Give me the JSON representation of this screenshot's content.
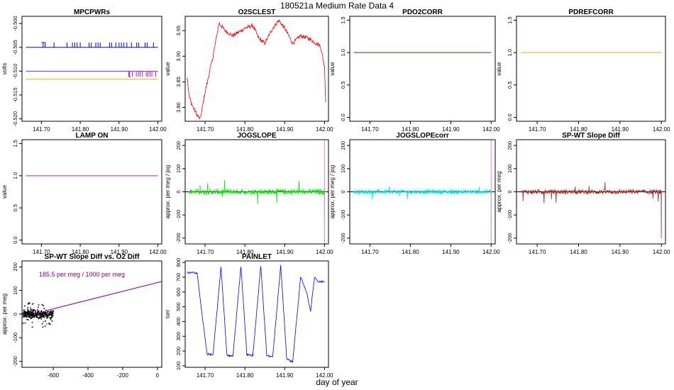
{
  "page": {
    "title": "180521a   Medium Rate Data 4",
    "footer": "day of year"
  },
  "chart_data": [
    {
      "type": "line",
      "title": "MPCPWRs",
      "ylabel": "volts",
      "xlim": [
        141.65,
        142.01
      ],
      "ylim": [
        -0.5205,
        -0.4985
      ],
      "xticks": [
        "141.70",
        "141.80",
        "141.90",
        "142.00"
      ],
      "yticks": [
        "-0.520",
        "-0.515",
        "-0.510",
        "-0.505",
        "-0.500"
      ],
      "series": [
        {
          "color": "#0000ff",
          "style": "step",
          "base": -0.505,
          "high": -0.504,
          "x": [
            141.66,
            141.7,
            141.71,
            141.76,
            141.78,
            141.8,
            141.87,
            141.9,
            141.92,
            141.94,
            142.0
          ]
        },
        {
          "color": "#a020f0",
          "style": "step",
          "base": -0.51,
          "high": -0.5112,
          "x": [
            141.66,
            141.925,
            141.93,
            141.94,
            141.95,
            141.96,
            141.97,
            141.98,
            141.99,
            142.0
          ]
        },
        {
          "color": "#ffa500",
          "style": "flat",
          "y": -0.5117,
          "x": [
            141.66,
            142.0
          ]
        }
      ]
    },
    {
      "type": "line",
      "title": "O2SCLEST",
      "ylabel": "value",
      "xlim": [
        141.65,
        142.01
      ],
      "ylim": [
        3.773,
        3.978
      ],
      "xticks": [
        "141.70",
        "141.80",
        "141.90",
        "142.00"
      ],
      "yticks": [
        "3.80",
        "3.85",
        "3.90",
        "3.95"
      ],
      "series": [
        {
          "color": "#ff0000",
          "noise": 0.004,
          "x": [
            141.655,
            141.66,
            141.67,
            141.68,
            141.688,
            141.7,
            141.72,
            141.735,
            141.75,
            141.77,
            141.8,
            141.82,
            141.835,
            141.85,
            141.87,
            141.885,
            141.9,
            141.92,
            141.94,
            141.96,
            141.98,
            141.99,
            142.0,
            142.003
          ],
          "y": [
            3.86,
            3.82,
            3.8,
            3.785,
            3.777,
            3.83,
            3.9,
            3.965,
            3.95,
            3.94,
            3.955,
            3.96,
            3.935,
            3.925,
            3.955,
            3.97,
            3.955,
            3.925,
            3.94,
            3.935,
            3.925,
            3.92,
            3.88,
            3.81
          ]
        }
      ]
    },
    {
      "type": "line",
      "title": "PDO2CORR",
      "ylabel": "value",
      "xlim": [
        141.65,
        142.01
      ],
      "ylim": [
        -0.06,
        1.56
      ],
      "xticks": [
        "141.70",
        "141.80",
        "141.90",
        "142.00"
      ],
      "yticks": [
        "0.0",
        "0.5",
        "1.0",
        "1.5"
      ],
      "series": [
        {
          "color": "#006400",
          "style": "flat",
          "y": 1.0,
          "x": [
            141.66,
            142.0
          ]
        }
      ]
    },
    {
      "type": "line",
      "title": "PDREFCORR",
      "ylabel": "value",
      "xlim": [
        141.65,
        142.01
      ],
      "ylim": [
        -0.06,
        1.56
      ],
      "xticks": [
        "141.70",
        "141.80",
        "141.90",
        "142.00"
      ],
      "yticks": [
        "0.0",
        "0.5",
        "1.0",
        "1.5"
      ],
      "series": [
        {
          "color": "#ffa500",
          "style": "flat",
          "y": 1.0,
          "x": [
            141.66,
            142.0
          ]
        }
      ]
    },
    {
      "type": "line",
      "title": "LAMP ON",
      "ylabel": "value",
      "xlim": [
        141.65,
        142.01
      ],
      "ylim": [
        -0.06,
        1.56
      ],
      "xticks": [
        "141.70",
        "141.80",
        "141.90",
        "142.00"
      ],
      "yticks": [
        "0.0",
        "0.5",
        "1.0",
        "1.5"
      ],
      "series": [
        {
          "color": "#a020f0",
          "style": "flat",
          "y": 1.0,
          "x": [
            141.66,
            142.0
          ]
        }
      ]
    },
    {
      "type": "line",
      "title": "JOGSLOPE",
      "ylabel": "approx. per meg / jog",
      "xlim": [
        141.65,
        142.01
      ],
      "ylim": [
        -225,
        225
      ],
      "xticks": [
        "141.70",
        "141.80",
        "141.90",
        "142.00"
      ],
      "yticks": [
        "-200",
        "-100",
        "0",
        "100",
        "200"
      ],
      "hline": {
        "y": 0,
        "color": "#000000"
      },
      "vline": {
        "x": 142.0,
        "color": "#ee82ee"
      },
      "series": [
        {
          "color": "#00ee00",
          "style": "noise",
          "noise": 12,
          "spike": 55,
          "x": [
            141.66,
            142.0
          ],
          "dropto": -215
        }
      ]
    },
    {
      "type": "line",
      "title": "JOGSLOPEcorr",
      "ylabel": "approx. per meg / jog",
      "xlim": [
        141.65,
        142.01
      ],
      "ylim": [
        -225,
        225
      ],
      "xticks": [
        "141.70",
        "141.80",
        "141.90",
        "142.00"
      ],
      "yticks": [
        "-200",
        "-100",
        "0",
        "100",
        "200"
      ],
      "hline": {
        "y": 0,
        "color": "#000000"
      },
      "vline": {
        "x": 142.0,
        "color": "#ee82ee"
      },
      "series": [
        {
          "color": "#00e5ee",
          "style": "noise",
          "noise": 10,
          "spike": 50,
          "x": [
            141.66,
            142.0
          ],
          "dropto": -215
        }
      ]
    },
    {
      "type": "line",
      "title": "SP-WT Slope Diff",
      "ylabel": "approx. per meg",
      "xlim": [
        141.65,
        142.01
      ],
      "ylim": [
        -225,
        225
      ],
      "xticks": [
        "141.70",
        "141.80",
        "141.90",
        "142.00"
      ],
      "yticks": [
        "-200",
        "-100",
        "0",
        "100",
        "200"
      ],
      "hline": {
        "y": 0,
        "color": "#000000"
      },
      "series": [
        {
          "color": "#a52a2a",
          "style": "noise",
          "noise": 10,
          "spike": 55,
          "x": [
            141.66,
            142.0
          ],
          "dropto": -200
        }
      ]
    },
    {
      "type": "scatter",
      "title": "SP-WT Slope Diff vs. O2 Diff",
      "ylabel": "approx. per meg",
      "annotation": "185.5 per meg / 1000 per meg",
      "xlim": [
        -780,
        25
      ],
      "ylim": [
        -225,
        225
      ],
      "xticks": [
        "-600",
        "-400",
        "-200",
        "0"
      ],
      "yticks": [
        "-200",
        "-100",
        "0",
        "100",
        "200"
      ],
      "cluster": {
        "x": [
          -775,
          -600
        ],
        "y": [
          -30,
          30
        ],
        "color": "#000000"
      },
      "fit": {
        "color": "#8b008b",
        "x": [
          -640,
          25
        ],
        "y": [
          15,
          138
        ]
      }
    },
    {
      "type": "line",
      "title": "PAINLET",
      "ylabel": "torr",
      "xlim": [
        141.65,
        142.01
      ],
      "ylim": [
        90,
        810
      ],
      "xticks": [
        "141.70",
        "141.80",
        "141.90",
        "142.00"
      ],
      "yticks": [
        "100",
        "200",
        "300",
        "400",
        "500",
        "600",
        "700",
        "800"
      ],
      "series": [
        {
          "color": "#0000ff",
          "noise": 6,
          "x": [
            141.655,
            141.68,
            141.69,
            141.705,
            141.72,
            141.74,
            141.755,
            141.77,
            141.79,
            141.805,
            141.82,
            141.84,
            141.855,
            141.87,
            141.89,
            141.905,
            141.92,
            141.94,
            141.955,
            141.965,
            141.975,
            141.985,
            142.0
          ],
          "y": [
            730,
            730,
            500,
            180,
            175,
            770,
            170,
            165,
            775,
            175,
            170,
            780,
            170,
            160,
            780,
            150,
            125,
            700,
            600,
            470,
            700,
            670,
            670
          ]
        }
      ]
    }
  ]
}
